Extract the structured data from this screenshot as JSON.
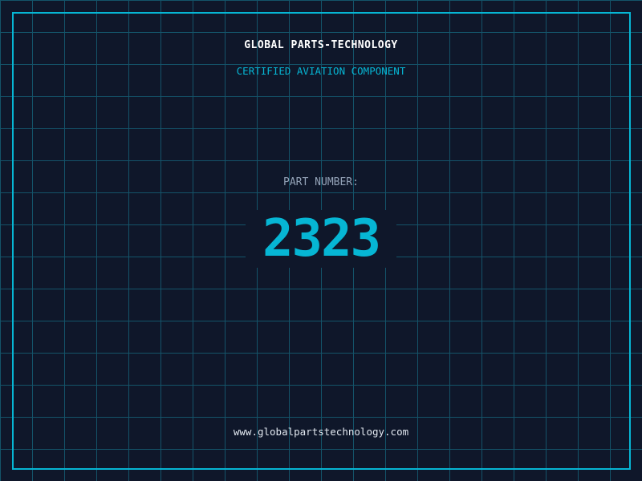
{
  "header": {
    "company": "GLOBAL PARTS-TECHNOLOGY",
    "subtitle": "CERTIFIED AVIATION COMPONENT"
  },
  "part": {
    "label": "PART NUMBER:",
    "number": "2323"
  },
  "footer": {
    "url": "www.globalpartstechnology.com"
  },
  "colors": {
    "background": "#0f172a",
    "accent": "#06b6d4",
    "grid": "#155e75",
    "label": "#94a3b8"
  }
}
